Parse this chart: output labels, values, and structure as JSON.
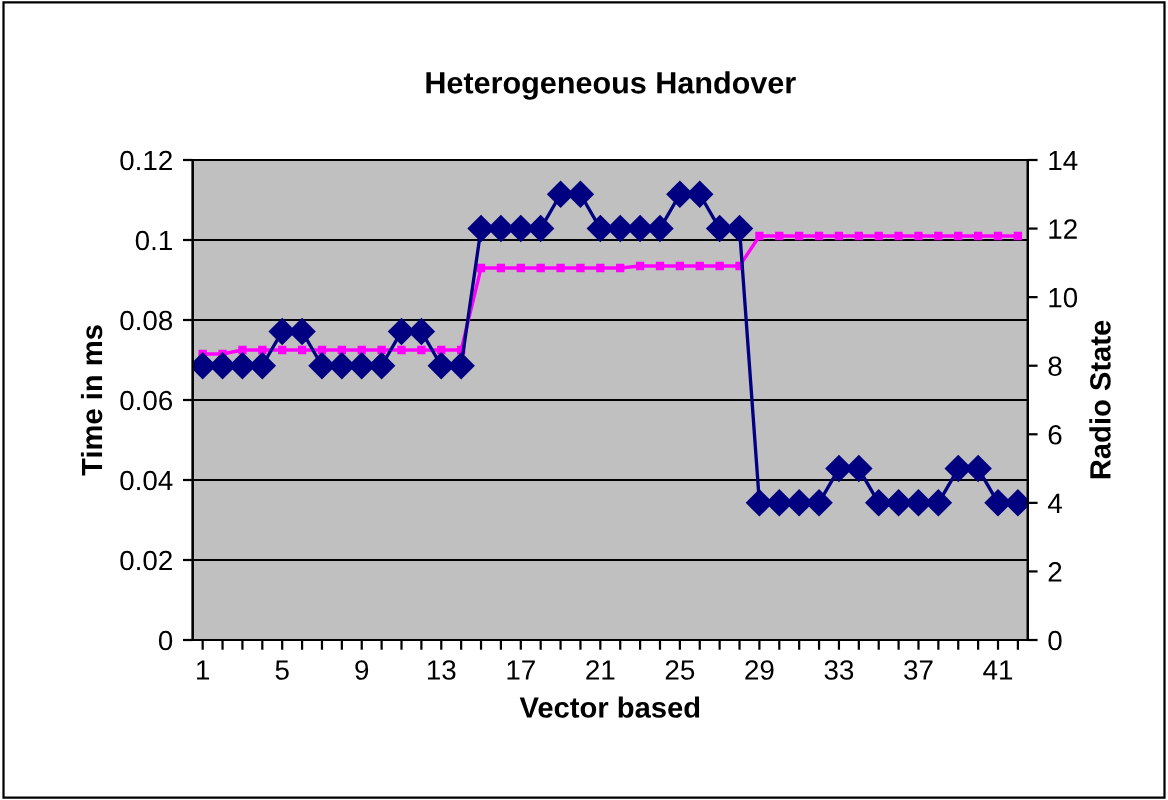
{
  "chart_data": {
    "type": "line",
    "title": "Heterogeneous Handover",
    "xlabel": "Vector based",
    "ylabel": "Time in ms",
    "y2label": "Radio State",
    "categories": [
      "1",
      null,
      null,
      null,
      "5",
      null,
      null,
      null,
      "9",
      null,
      null,
      null,
      "13",
      null,
      null,
      null,
      "17",
      null,
      null,
      null,
      "21",
      null,
      null,
      null,
      "25",
      null,
      null,
      null,
      "29",
      null,
      null,
      null,
      "33",
      null,
      null,
      null,
      "37",
      null,
      null,
      null,
      "41",
      null
    ],
    "series": [
      {
        "color": "#000080",
        "axis": "y2",
        "marker": "diamond",
        "values": [
          8,
          8,
          8,
          8,
          9,
          9,
          8,
          8,
          8,
          8,
          9,
          9,
          8,
          8,
          12,
          12,
          12,
          12,
          13,
          13,
          12,
          12,
          12,
          12,
          13,
          13,
          12,
          12,
          4,
          4,
          4,
          4,
          5,
          5,
          4,
          4,
          4,
          4,
          5,
          5,
          4,
          4
        ]
      },
      {
        "color": "#ff00ff",
        "axis": "y",
        "marker": "square",
        "values": [
          0.0715,
          0.0715,
          0.0725,
          0.0725,
          0.0725,
          0.0725,
          0.0725,
          0.0725,
          0.0725,
          0.0725,
          0.0725,
          0.0725,
          0.0725,
          0.0725,
          0.093,
          0.093,
          0.093,
          0.093,
          0.093,
          0.093,
          0.093,
          0.093,
          0.0935,
          0.0935,
          0.0935,
          0.0935,
          0.0935,
          0.0935,
          0.101,
          0.101,
          0.101,
          0.101,
          0.101,
          0.101,
          0.101,
          0.101,
          0.101,
          0.101,
          0.101,
          0.101,
          0.101,
          0.101
        ]
      }
    ],
    "ylim": [
      0,
      0.12
    ],
    "yticks": [
      0,
      0.02,
      0.04,
      0.06,
      0.08,
      0.1,
      0.12
    ],
    "y2lim": [
      0,
      14
    ],
    "y2ticks": [
      0,
      2,
      4,
      6,
      8,
      10,
      12,
      14
    ],
    "grid": "y",
    "legend": false
  }
}
